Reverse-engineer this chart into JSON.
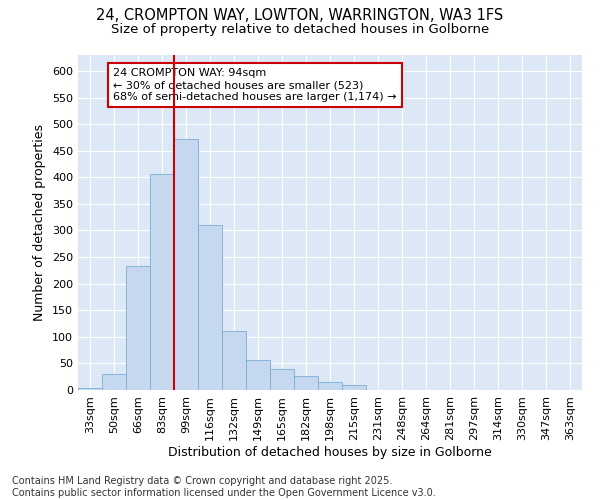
{
  "title_line1": "24, CROMPTON WAY, LOWTON, WARRINGTON, WA3 1FS",
  "title_line2": "Size of property relative to detached houses in Golborne",
  "xlabel": "Distribution of detached houses by size in Golborne",
  "ylabel": "Number of detached properties",
  "bar_labels": [
    "33sqm",
    "50sqm",
    "66sqm",
    "83sqm",
    "99sqm",
    "116sqm",
    "132sqm",
    "149sqm",
    "165sqm",
    "182sqm",
    "198sqm",
    "215sqm",
    "231sqm",
    "248sqm",
    "264sqm",
    "281sqm",
    "297sqm",
    "314sqm",
    "330sqm",
    "347sqm",
    "363sqm"
  ],
  "bar_values": [
    3,
    30,
    233,
    406,
    472,
    311,
    111,
    57,
    40,
    26,
    15,
    10,
    0,
    0,
    0,
    0,
    0,
    0,
    0,
    0,
    0
  ],
  "bar_color": "#c5d8f0",
  "bar_edge_color": "#7aadd4",
  "bg_color": "#dce8f5",
  "grid_color": "#ffffff",
  "vline_x_index": 4,
  "vline_color": "#cc0000",
  "annotation_text": "24 CROMPTON WAY: 94sqm\n← 30% of detached houses are smaller (523)\n68% of semi-detached houses are larger (1,174) →",
  "annotation_box_facecolor": "#ffffff",
  "annotation_box_edgecolor": "#cc0000",
  "ylim": [
    0,
    630
  ],
  "yticks": [
    0,
    50,
    100,
    150,
    200,
    250,
    300,
    350,
    400,
    450,
    500,
    550,
    600
  ],
  "footer_text": "Contains HM Land Registry data © Crown copyright and database right 2025.\nContains public sector information licensed under the Open Government Licence v3.0.",
  "fig_bg_color": "#ffffff",
  "title_fontsize": 10.5,
  "subtitle_fontsize": 9.5,
  "axis_label_fontsize": 9,
  "tick_fontsize": 8,
  "annotation_fontsize": 8,
  "footer_fontsize": 7
}
